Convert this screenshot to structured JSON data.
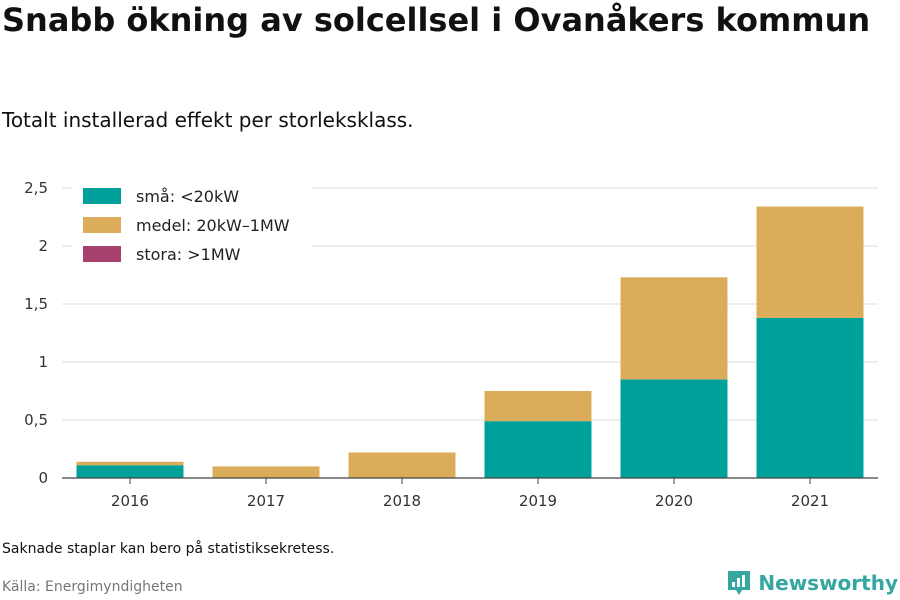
{
  "title": "Snabb ökning av solcellsel i Ovanåkers kommun",
  "subtitle": "Totalt installerad effekt per storleksklass.",
  "note": "Saknade staplar kan bero på statistiksekretess.",
  "source": "Källa: Energimyndigheten",
  "brand": "Newsworthy",
  "colors": {
    "small": "#00a19a",
    "medium": "#dbad5a",
    "large": "#a8416e",
    "brand": "#35a6a0"
  },
  "chart_data": {
    "type": "bar",
    "stacked": true,
    "categories": [
      "2016",
      "2017",
      "2018",
      "2019",
      "2020",
      "2021"
    ],
    "series": [
      {
        "name": "små: <20kW",
        "color": "#00a19a",
        "values": [
          0.11,
          0,
          0,
          0.49,
          0.85,
          1.38
        ]
      },
      {
        "name": "medel: 20kW–1MW",
        "color": "#dbad5a",
        "values": [
          0.03,
          0.1,
          0.22,
          0.26,
          0.88,
          0.96
        ]
      },
      {
        "name": "stora: >1MW",
        "color": "#a8416e",
        "values": [
          0,
          0,
          0,
          0,
          0,
          0
        ]
      }
    ],
    "yticks": [
      0,
      0.5,
      1,
      1.5,
      2,
      2.5
    ],
    "ytick_labels": [
      "0",
      "0,5",
      "1",
      "1,5",
      "2",
      "2,5"
    ],
    "ylim": [
      0,
      2.5
    ],
    "grid": true,
    "legend_position": "top-left"
  }
}
